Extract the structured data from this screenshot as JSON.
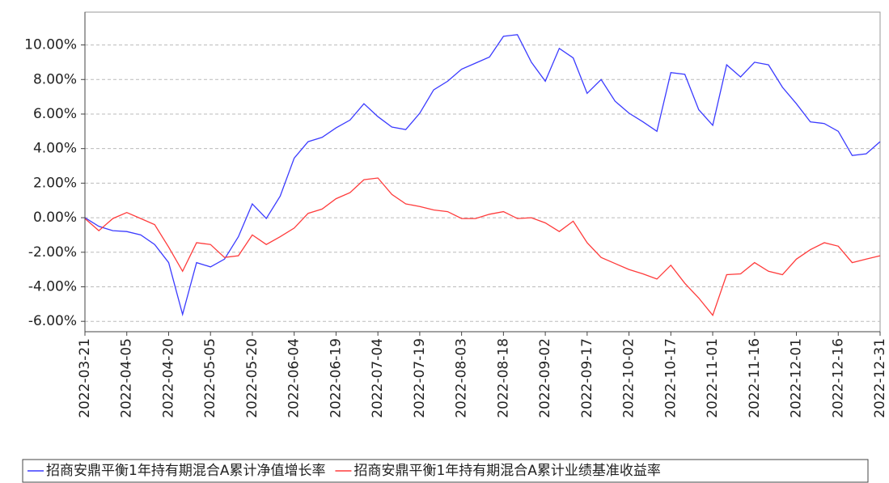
{
  "chart_data": {
    "type": "line",
    "x": [
      "2022-03-21",
      "2022-03-26",
      "2022-03-31",
      "2022-04-05",
      "2022-04-10",
      "2022-04-15",
      "2022-04-20",
      "2022-04-25",
      "2022-04-30",
      "2022-05-05",
      "2022-05-10",
      "2022-05-15",
      "2022-05-20",
      "2022-05-25",
      "2022-05-30",
      "2022-06-04",
      "2022-06-09",
      "2022-06-14",
      "2022-06-19",
      "2022-06-24",
      "2022-06-29",
      "2022-07-04",
      "2022-07-09",
      "2022-07-14",
      "2022-07-19",
      "2022-07-24",
      "2022-07-29",
      "2022-08-03",
      "2022-08-08",
      "2022-08-13",
      "2022-08-18",
      "2022-08-23",
      "2022-08-28",
      "2022-09-02",
      "2022-09-07",
      "2022-09-12",
      "2022-09-17",
      "2022-09-22",
      "2022-09-27",
      "2022-10-02",
      "2022-10-07",
      "2022-10-12",
      "2022-10-17",
      "2022-10-22",
      "2022-10-27",
      "2022-11-01",
      "2022-11-06",
      "2022-11-11",
      "2022-11-16",
      "2022-11-21",
      "2022-11-26",
      "2022-12-01",
      "2022-12-06",
      "2022-12-11",
      "2022-12-16",
      "2022-12-21",
      "2022-12-26",
      "2022-12-31"
    ],
    "series": [
      {
        "name": "招商安鼎平衡1年持有期混合A累计净值增长率",
        "color": "#3b3bff",
        "values": [
          0.0,
          -0.5,
          -0.75,
          -0.8,
          -1.0,
          -1.55,
          -2.6,
          -5.6,
          -2.6,
          -2.85,
          -2.4,
          -1.1,
          0.8,
          -0.05,
          1.25,
          3.45,
          4.4,
          4.65,
          5.2,
          5.65,
          6.6,
          5.85,
          5.25,
          5.1,
          6.05,
          7.4,
          7.9,
          8.6,
          8.95,
          9.3,
          10.5,
          10.6,
          9.0,
          7.9,
          9.8,
          9.25,
          7.2,
          8.0,
          6.75,
          6.05,
          5.55,
          5.0,
          8.4,
          8.3,
          6.25,
          5.35,
          8.85,
          8.15,
          9.0,
          8.85,
          7.55,
          6.6,
          5.55,
          5.45,
          5.0,
          3.6,
          3.7,
          4.4
        ]
      },
      {
        "name": "招商安鼎平衡1年持有期混合A累计业绩基准收益率",
        "color": "#ff3b3b",
        "values": [
          -0.05,
          -0.75,
          -0.05,
          0.3,
          -0.05,
          -0.4,
          -1.7,
          -3.1,
          -1.45,
          -1.55,
          -2.3,
          -2.2,
          -1.0,
          -1.55,
          -1.1,
          -0.6,
          0.25,
          0.5,
          1.1,
          1.45,
          2.2,
          2.3,
          1.35,
          0.8,
          0.65,
          0.45,
          0.35,
          -0.05,
          -0.05,
          0.2,
          0.35,
          -0.05,
          0.0,
          -0.3,
          -0.8,
          -0.2,
          -1.45,
          -2.3,
          -2.65,
          -3.0,
          -3.25,
          -3.55,
          -2.75,
          -3.8,
          -4.65,
          -5.65,
          -3.3,
          -3.25,
          -2.6,
          -3.1,
          -3.3,
          -2.4,
          -1.85,
          -1.45,
          -1.65,
          -2.6,
          -2.4,
          -2.2
        ]
      }
    ],
    "xlim": [
      "2022-03-21",
      "2022-12-31"
    ],
    "xticks": [
      "2022-03-21",
      "2022-04-05",
      "2022-04-20",
      "2022-05-05",
      "2022-05-20",
      "2022-06-04",
      "2022-06-19",
      "2022-07-04",
      "2022-07-19",
      "2022-08-03",
      "2022-08-18",
      "2022-09-02",
      "2022-09-17",
      "2022-10-02",
      "2022-10-17",
      "2022-11-01",
      "2022-11-16",
      "2022-12-01",
      "2022-12-16",
      "2022-12-31"
    ],
    "ylim": [
      -6.6,
      11.9
    ],
    "yticks": [
      {
        "value": -6,
        "label": "-6.00%"
      },
      {
        "value": -4,
        "label": "-4.00%"
      },
      {
        "value": -2,
        "label": "-2.00%"
      },
      {
        "value": 0,
        "label": "0.00%"
      },
      {
        "value": 2,
        "label": "2.00%"
      },
      {
        "value": 4,
        "label": "4.00%"
      },
      {
        "value": 6,
        "label": "6.00%"
      },
      {
        "value": 8,
        "label": "8.00%"
      },
      {
        "value": 10,
        "label": "10.00%"
      }
    ],
    "grid": true,
    "legend": "bottom"
  }
}
